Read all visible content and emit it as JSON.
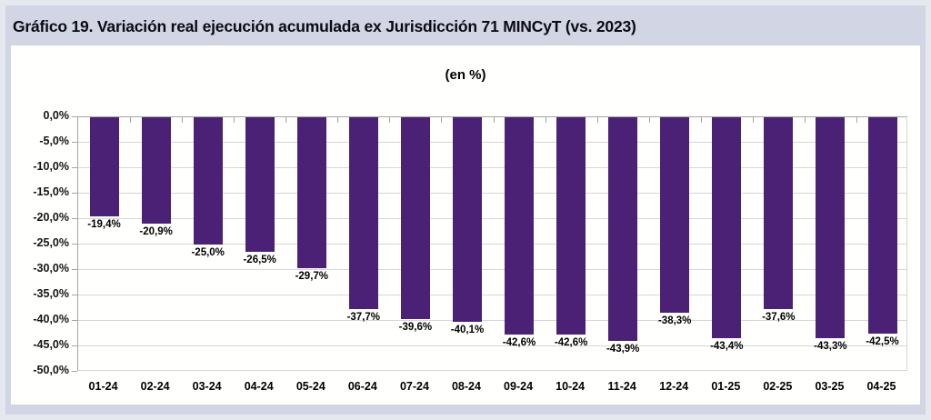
{
  "header": {
    "title": "Gráfico 19. Variación real ejecución acumulada ex Jurisdicción 71 MINCyT (vs. 2023)"
  },
  "chart_data": {
    "type": "bar",
    "title": "Gráfico 19. Variación real ejecución acumulada ex Jurisdicción 71 MINCyT (vs. 2023)",
    "subtitle": "(en %)",
    "categories": [
      "01-24",
      "02-24",
      "03-24",
      "04-24",
      "05-24",
      "06-24",
      "07-24",
      "08-24",
      "09-24",
      "10-24",
      "11-24",
      "12-24",
      "01-25",
      "02-25",
      "03-25",
      "04-25"
    ],
    "values": [
      -19.4,
      -20.9,
      -25.0,
      -26.5,
      -29.7,
      -37.7,
      -39.6,
      -40.1,
      -42.6,
      -42.6,
      -43.9,
      -38.3,
      -43.4,
      -37.6,
      -43.3,
      -42.5
    ],
    "value_labels": [
      "-19,4%",
      "-20,9%",
      "-25,0%",
      "-26,5%",
      "-29,7%",
      "-37,7%",
      "-39,6%",
      "-40,1%",
      "-42,6%",
      "-42,6%",
      "-43,9%",
      "-38,3%",
      "-43,4%",
      "-37,6%",
      "-43,3%",
      "-42,5%"
    ],
    "y_ticks": [
      "0,0%",
      "-5,0%",
      "-10,0%",
      "-15,0%",
      "-20,0%",
      "-25,0%",
      "-30,0%",
      "-35,0%",
      "-40,0%",
      "-45,0%",
      "-50,0%"
    ],
    "ylim": [
      -50,
      0
    ],
    "y_step": 5,
    "grid": true,
    "legend": "none",
    "colors": {
      "bar": "#4B2176",
      "background_outer": "#e6e8ef",
      "background_band": "#d2d5e3",
      "panel": "#fffffe",
      "gridline": "#d6d6d6",
      "axis": "#a6a6a6",
      "text": "#000000"
    }
  }
}
